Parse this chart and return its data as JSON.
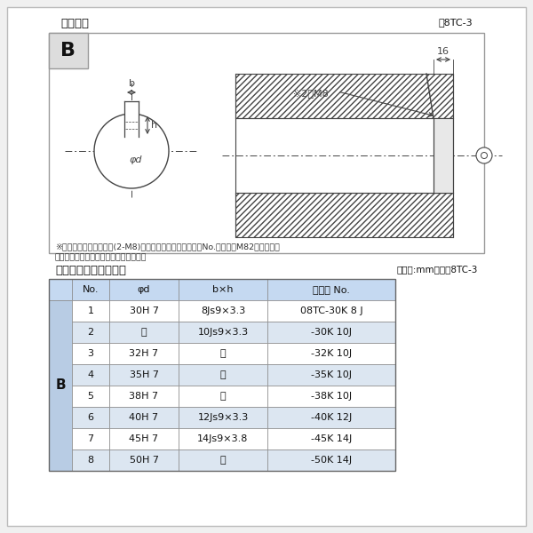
{
  "bg_color": "#f0f0f0",
  "outer_bg": "#f0f0f0",
  "inner_bg": "#ffffff",
  "title_top": "軸穴形状",
  "fig_label_top": "囸8TC-3",
  "section_title": "軸穴形状コード一覧表",
  "unit_label": "（単位:mm）　袆8TC-3",
  "note_line1": "※セットボルト用タップ(2-M8)が必要な場合は右記コードNo.の末尾にM82を付ける。",
  "note_line2": "（セットボルトは付属されています。）",
  "m8_label": "※2－M8",
  "b_label": "B",
  "phi_d_label": "φd",
  "b_dim_label": "b",
  "h_dim_label": "h",
  "dim_16": "16",
  "headers": [
    "No.",
    "φd",
    "b×h",
    "コード No."
  ],
  "rows": [
    [
      "1",
      "30H 7",
      "8Js9×3.3",
      "08TC-30K 8 J"
    ],
    [
      "2",
      "〃",
      "10Js9×3.3",
      "-30K 10J"
    ],
    [
      "3",
      "32H 7",
      "〃",
      "-32K 10J"
    ],
    [
      "4",
      "35H 7",
      "〃",
      "-35K 10J"
    ],
    [
      "5",
      "38H 7",
      "〃",
      "-38K 10J"
    ],
    [
      "6",
      "40H 7",
      "12Js9×3.3",
      "-40K 12J"
    ],
    [
      "7",
      "45H 7",
      "14Js9×3.8",
      "-45K 14J"
    ],
    [
      "8",
      "50H 7",
      "〃",
      "-50K 14J"
    ]
  ],
  "row_colors": [
    "#ffffff",
    "#dce6f1",
    "#ffffff",
    "#dce6f1",
    "#ffffff",
    "#dce6f1",
    "#ffffff",
    "#dce6f1"
  ],
  "header_color": "#c5d9f1",
  "b_col_color": "#b8cce4",
  "line_color": "#444444",
  "gray_line": "#888888"
}
